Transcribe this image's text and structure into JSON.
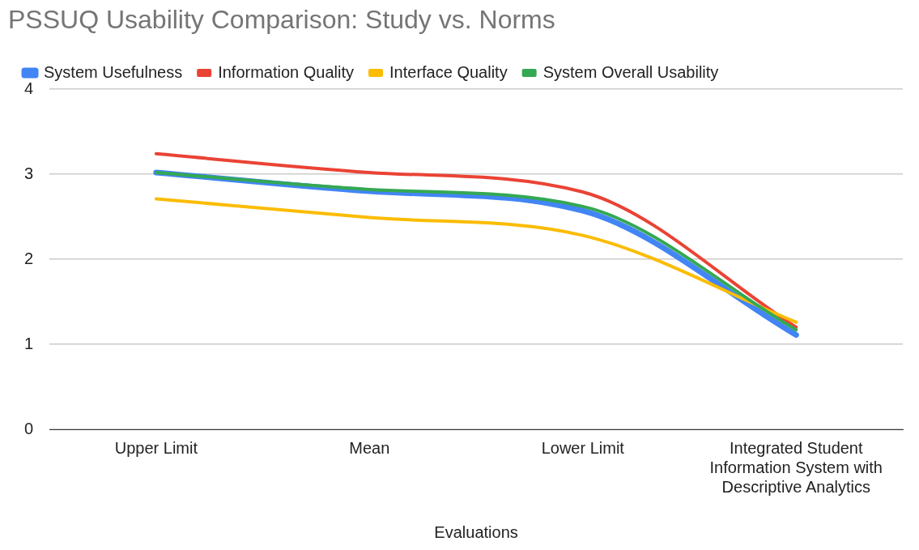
{
  "chart_data": {
    "type": "line",
    "title": "PSSUQ Usability Comparison: Study vs. Norms",
    "xlabel": "Evaluations",
    "categories": [
      "Upper Limit",
      "Mean",
      "Lower Limit",
      "Integrated Student Information System with Descriptive Analytics"
    ],
    "series": [
      {
        "name": "System Usefulness",
        "color": "#4285f4",
        "values": [
          3.02,
          2.8,
          2.57,
          1.11
        ]
      },
      {
        "name": "Information Quality",
        "color": "#ea4335",
        "values": [
          3.24,
          3.02,
          2.79,
          1.2
        ]
      },
      {
        "name": "Interface Quality",
        "color": "#fbbc04",
        "values": [
          2.71,
          2.49,
          2.28,
          1.26
        ]
      },
      {
        "name": "System Overall Usability",
        "color": "#34a853",
        "values": [
          3.02,
          2.82,
          2.62,
          1.17
        ]
      }
    ],
    "ylim": [
      0,
      4
    ],
    "yticks": [
      0,
      1,
      2,
      3,
      4
    ],
    "grid": "y",
    "legend": "top left",
    "marker": "none",
    "line_style": "solid"
  }
}
